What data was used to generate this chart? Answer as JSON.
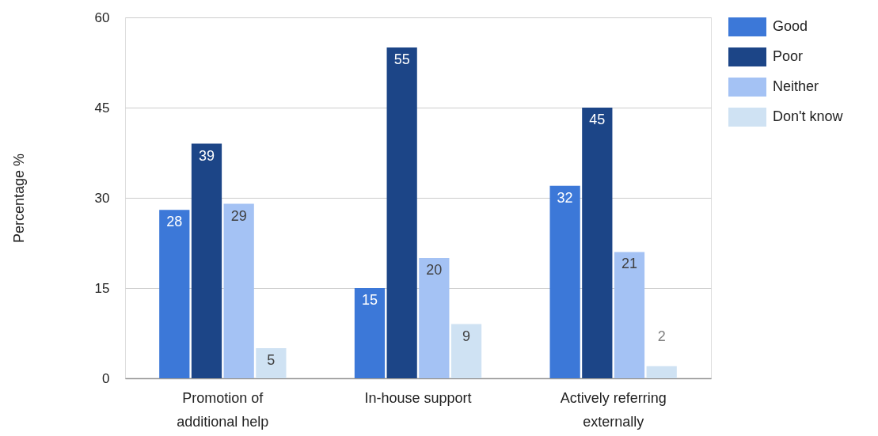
{
  "chart_data": {
    "type": "bar",
    "ylabel": "Percentage %",
    "categories": [
      "Promotion of additional help",
      "In-house support",
      "Actively referring externally"
    ],
    "series": [
      {
        "name": "Good",
        "color": "#3c78d8",
        "values": [
          28,
          15,
          32
        ]
      },
      {
        "name": "Poor",
        "color": "#1c4587",
        "values": [
          39,
          55,
          45
        ]
      },
      {
        "name": "Neither",
        "color": "#a4c2f4",
        "values": [
          29,
          20,
          21
        ]
      },
      {
        "name": "Don't know",
        "color": "#cfe2f3",
        "values": [
          5,
          9,
          2
        ]
      }
    ],
    "ylim": [
      0,
      60
    ],
    "yticks": [
      0,
      15,
      30,
      45,
      60
    ],
    "grid": "y",
    "legend": "right",
    "data_labels": true
  }
}
